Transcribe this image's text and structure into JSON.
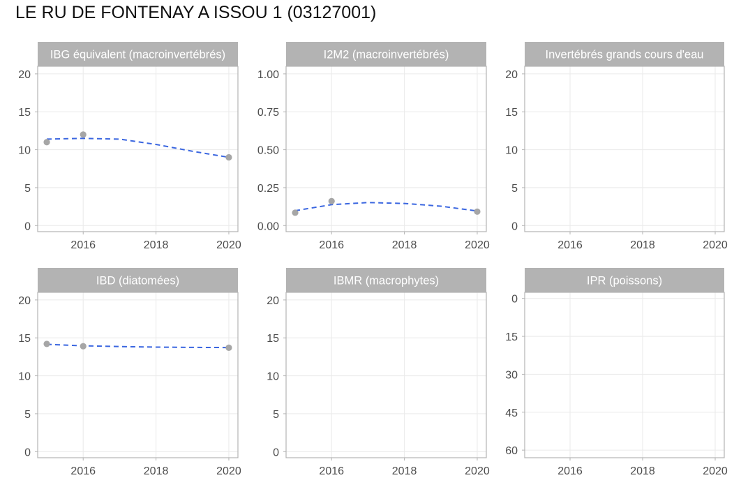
{
  "title": "LE RU DE FONTENAY A ISSOU 1 (03127001)",
  "chart_data": [
    {
      "type": "scatter",
      "title": "IBG équivalent (macroinvertébrés)",
      "x": [
        2015,
        2016,
        2020
      ],
      "y": [
        11,
        12,
        9
      ],
      "trend": {
        "x": [
          2015,
          2016,
          2017,
          2018,
          2019,
          2020
        ],
        "y": [
          11.4,
          11.5,
          11.4,
          10.7,
          9.8,
          9.0
        ]
      },
      "xlim": [
        2014.75,
        2020.25
      ],
      "ylim": [
        -0.8,
        21
      ],
      "xticks": [
        2016,
        2018,
        2020
      ],
      "xtick_labels": [
        "2016",
        "2018",
        "2020"
      ],
      "yticks": [
        0,
        5,
        10,
        15,
        20
      ],
      "ytick_labels": [
        "0",
        "5",
        "10",
        "15",
        "20"
      ],
      "y_reversed": false
    },
    {
      "type": "scatter",
      "title": "I2M2 (macroinvertébrés)",
      "x": [
        2015,
        2016,
        2020
      ],
      "y": [
        0.085,
        0.161,
        0.092
      ],
      "trend": {
        "x": [
          2015,
          2016,
          2017,
          2018,
          2019,
          2020
        ],
        "y": [
          0.098,
          0.138,
          0.152,
          0.146,
          0.128,
          0.096
        ]
      },
      "xlim": [
        2014.75,
        2020.25
      ],
      "ylim": [
        -0.04,
        1.05
      ],
      "xticks": [
        2016,
        2018,
        2020
      ],
      "xtick_labels": [
        "2016",
        "2018",
        "2020"
      ],
      "yticks": [
        0,
        0.25,
        0.5,
        0.75,
        1.0
      ],
      "ytick_labels": [
        "0.00",
        "0.25",
        "0.50",
        "0.75",
        "1.00"
      ],
      "y_reversed": false
    },
    {
      "type": "scatter",
      "title": "Invertébrés grands cours d'eau",
      "x": [],
      "y": [],
      "xlim": [
        2014.75,
        2020.25
      ],
      "ylim": [
        -0.8,
        21
      ],
      "xticks": [
        2016,
        2018,
        2020
      ],
      "xtick_labels": [
        "2016",
        "2018",
        "2020"
      ],
      "yticks": [
        0,
        5,
        10,
        15,
        20
      ],
      "ytick_labels": [
        "0",
        "5",
        "10",
        "15",
        "20"
      ],
      "y_reversed": false
    },
    {
      "type": "scatter",
      "title": "IBD (diatomées)",
      "x": [
        2015,
        2016,
        2020
      ],
      "y": [
        14.2,
        13.9,
        13.7
      ],
      "trend": {
        "x": [
          2015,
          2016,
          2017,
          2018,
          2019,
          2020
        ],
        "y": [
          14.15,
          13.95,
          13.85,
          13.78,
          13.74,
          13.72
        ]
      },
      "xlim": [
        2014.75,
        2020.25
      ],
      "ylim": [
        -0.8,
        21
      ],
      "xticks": [
        2016,
        2018,
        2020
      ],
      "xtick_labels": [
        "2016",
        "2018",
        "2020"
      ],
      "yticks": [
        0,
        5,
        10,
        15,
        20
      ],
      "ytick_labels": [
        "0",
        "5",
        "10",
        "15",
        "20"
      ],
      "y_reversed": false
    },
    {
      "type": "scatter",
      "title": "IBMR (macrophytes)",
      "x": [],
      "y": [],
      "xlim": [
        2014.75,
        2020.25
      ],
      "ylim": [
        -0.8,
        21
      ],
      "xticks": [
        2016,
        2018,
        2020
      ],
      "xtick_labels": [
        "2016",
        "2018",
        "2020"
      ],
      "yticks": [
        0,
        5,
        10,
        15,
        20
      ],
      "ytick_labels": [
        "0",
        "5",
        "10",
        "15",
        "20"
      ],
      "y_reversed": false
    },
    {
      "type": "scatter",
      "title": "IPR (poissons)",
      "x": [],
      "y": [],
      "xlim": [
        2014.75,
        2020.25
      ],
      "ylim": [
        -2.4,
        63
      ],
      "xticks": [
        2016,
        2018,
        2020
      ],
      "xtick_labels": [
        "2016",
        "2018",
        "2020"
      ],
      "yticks": [
        0,
        15,
        30,
        45,
        60
      ],
      "ytick_labels": [
        "0",
        "15",
        "30",
        "45",
        "60"
      ],
      "y_reversed": true
    }
  ],
  "colors": {
    "strip": "#b3b3b3",
    "point": "#a6a6a6",
    "trend": "#3a66e0",
    "grid": "#ebebeb"
  }
}
